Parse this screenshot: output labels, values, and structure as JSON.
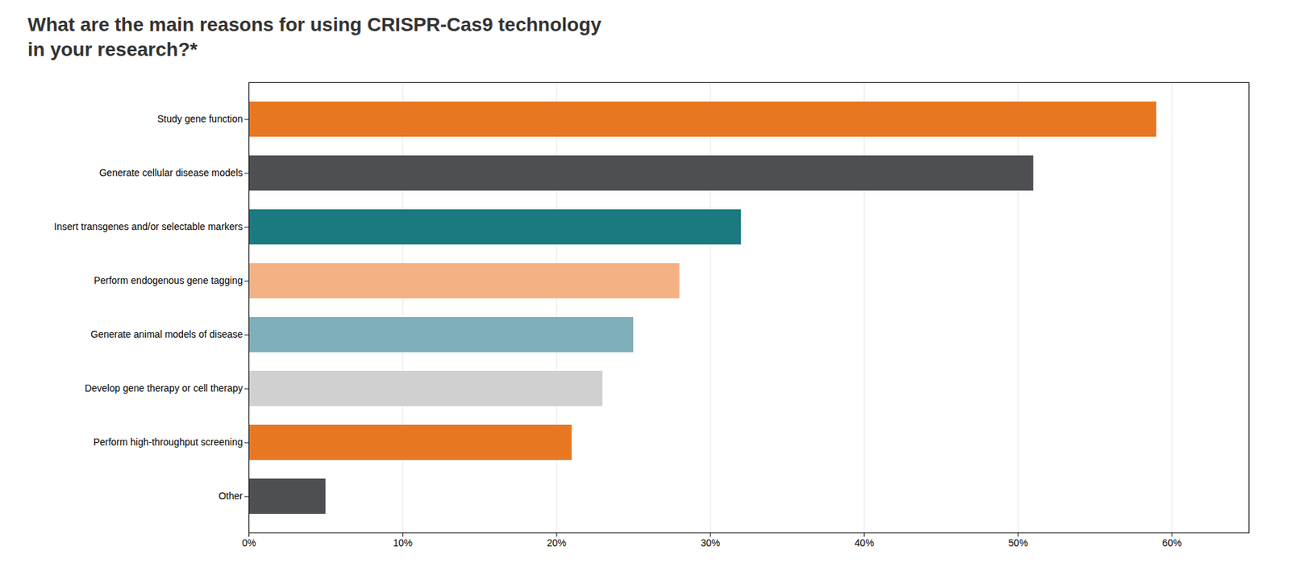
{
  "chart_data": {
    "type": "bar",
    "title": "What are the main reasons for using CRISPR-Cas9 technology",
    "subtitle": "in your research?*",
    "orientation": "horizontal",
    "categories": [
      "Study gene function",
      "Generate cellular disease models",
      "Insert transgenes and/or selectable markers",
      "Perform endogenous gene tagging",
      "Generate animal models of disease",
      "Develop gene therapy or cell therapy",
      "Perform high-throughput screening",
      "Other"
    ],
    "values": [
      59,
      51,
      32,
      28,
      25,
      23,
      21,
      5
    ],
    "colors": [
      "#E87722",
      "#4D4F53",
      "#1A7A80",
      "#F4B183",
      "#7FAFBA",
      "#D0D0D0",
      "#E87722",
      "#4D4F53"
    ],
    "xlim": [
      0,
      65
    ],
    "xticks": [
      {
        "value": 0,
        "label": "0%"
      },
      {
        "value": 10,
        "label": "10%"
      },
      {
        "value": 20,
        "label": "20%"
      },
      {
        "value": 30,
        "label": "30%"
      },
      {
        "value": 40,
        "label": "40%"
      },
      {
        "value": 50,
        "label": "50%"
      },
      {
        "value": 60,
        "label": "60%"
      }
    ],
    "grid": true
  }
}
